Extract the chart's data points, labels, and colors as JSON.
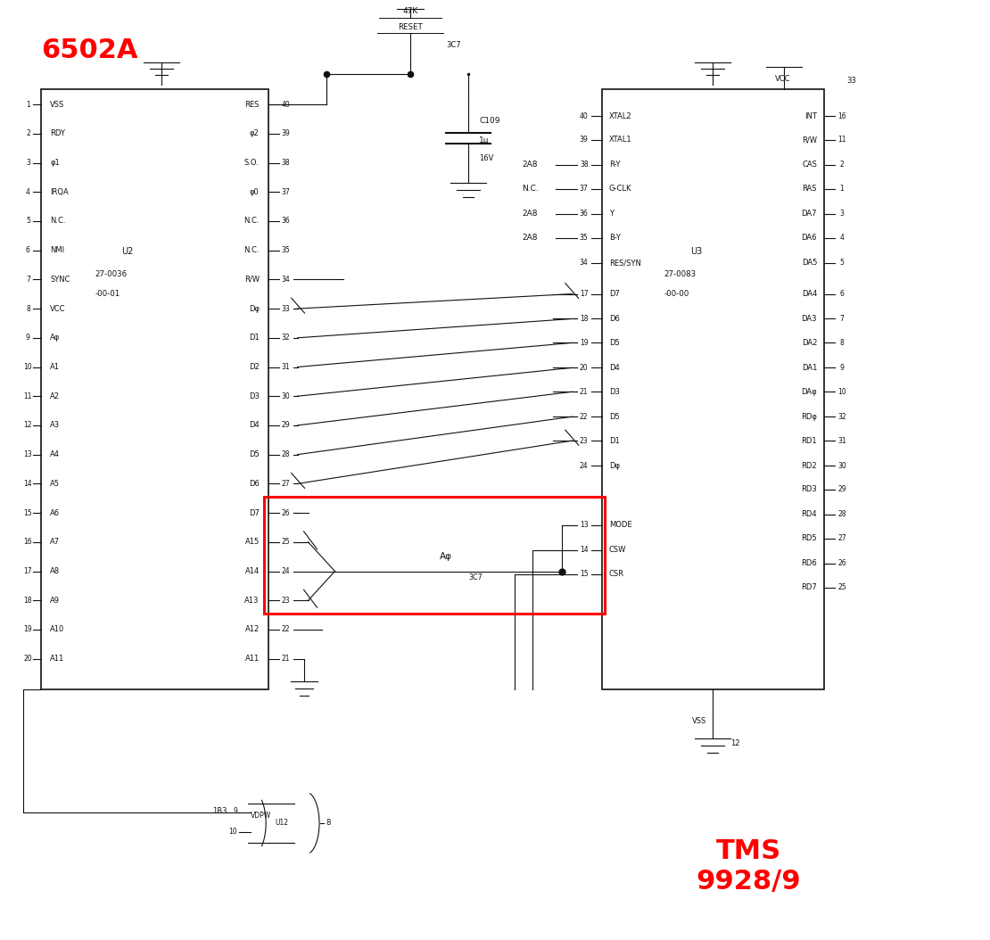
{
  "bg_color": "#ffffff",
  "title_6502": "6502A",
  "title_tms": "TMS\n9928/9",
  "title_color": "#ff0000",
  "highlight_color": "#ff0000",
  "cpu_left_pins": [
    [
      "1",
      "VSS"
    ],
    [
      "2",
      "RDY"
    ],
    [
      "3",
      "φ1"
    ],
    [
      "4",
      "IRQA"
    ],
    [
      "5",
      "N.C."
    ],
    [
      "6",
      "NMI"
    ],
    [
      "7",
      "SYNC"
    ],
    [
      "8",
      "VCC"
    ],
    [
      "9",
      "Aφ"
    ],
    [
      "10",
      "A1"
    ],
    [
      "11",
      "A2"
    ],
    [
      "12",
      "A3"
    ],
    [
      "13",
      "A4"
    ],
    [
      "14",
      "A5"
    ],
    [
      "15",
      "A6"
    ],
    [
      "16",
      "A7"
    ],
    [
      "17",
      "A8"
    ],
    [
      "18",
      "A9"
    ],
    [
      "19",
      "A10"
    ],
    [
      "20",
      "A11"
    ]
  ],
  "cpu_right_pins": [
    [
      "40",
      "RES"
    ],
    [
      "39",
      "φ2"
    ],
    [
      "38",
      "S.O."
    ],
    [
      "37",
      "φ0"
    ],
    [
      "36",
      "N.C."
    ],
    [
      "35",
      "N.C."
    ],
    [
      "34",
      "R/W"
    ],
    [
      "33",
      "Dφ"
    ],
    [
      "32",
      "D1"
    ],
    [
      "31",
      "D2"
    ],
    [
      "30",
      "D3"
    ],
    [
      "29",
      "D4"
    ],
    [
      "28",
      "D5"
    ],
    [
      "27",
      "D6"
    ],
    [
      "26",
      "D7"
    ],
    [
      "25",
      "A15"
    ],
    [
      "24",
      "A14"
    ],
    [
      "23",
      "A13"
    ],
    [
      "22",
      "A12"
    ],
    [
      "21",
      "A11"
    ]
  ],
  "cpu_label1": "U2",
  "cpu_label2": "27-0036",
  "cpu_label3": "-00-01",
  "tms_left_top": [
    [
      "40",
      "XTAL2",
      92.5
    ],
    [
      "39",
      "XTAL1",
      89.8
    ],
    [
      "38",
      "R-Y",
      87.0
    ],
    [
      "37",
      "G-CLK",
      84.3
    ],
    [
      "36",
      "Y",
      81.5
    ],
    [
      "35",
      "B-Y",
      78.8
    ],
    [
      "34",
      "RES/SYN",
      76.0
    ]
  ],
  "tms_left_mid": [
    [
      "17",
      "D7",
      72.5
    ],
    [
      "18",
      "D6",
      69.7
    ],
    [
      "19",
      "D5",
      67.0
    ],
    [
      "20",
      "D4",
      64.2
    ],
    [
      "21",
      "D3",
      61.5
    ],
    [
      "22",
      "D5",
      58.7
    ],
    [
      "23",
      "D1",
      56.0
    ],
    [
      "24",
      "Dφ",
      53.2
    ]
  ],
  "tms_left_bot": [
    [
      "13",
      "MODE",
      46.5
    ],
    [
      "14",
      "CSW",
      43.7
    ],
    [
      "15",
      "CSR",
      41.0
    ]
  ],
  "tms_right_pins": [
    [
      "16",
      "INT",
      92.5
    ],
    [
      "11",
      "R/W",
      89.8
    ],
    [
      "2",
      "CAS",
      87.0
    ],
    [
      "1",
      "RAS",
      84.3
    ],
    [
      "3",
      "DA7",
      81.5
    ],
    [
      "4",
      "DA6",
      78.8
    ],
    [
      "5",
      "DA5",
      76.0
    ],
    [
      "6",
      "DA4",
      72.5
    ],
    [
      "7",
      "DA3",
      69.7
    ],
    [
      "8",
      "DA2",
      67.0
    ],
    [
      "9",
      "DA1",
      64.2
    ],
    [
      "10",
      "DAφ",
      61.5
    ],
    [
      "32",
      "RDφ",
      58.7
    ],
    [
      "31",
      "RD1",
      56.0
    ],
    [
      "30",
      "RD2",
      53.2
    ],
    [
      "29",
      "RD3",
      50.5
    ],
    [
      "28",
      "RD4",
      47.7
    ],
    [
      "27",
      "RD5",
      45.0
    ],
    [
      "26",
      "RD6",
      42.2
    ],
    [
      "25",
      "RD7",
      39.5
    ]
  ],
  "tms_label1": "U3",
  "tms_label2": "27-0083",
  "tms_label3": "-00-00",
  "za8_signals": [
    [
      "2A8",
      87.0
    ],
    [
      "N.C.",
      84.3
    ],
    [
      "2A8",
      81.5
    ],
    [
      "2A8",
      78.8
    ]
  ],
  "a0_label": "Aφ",
  "a0_sublabel": "3C7"
}
